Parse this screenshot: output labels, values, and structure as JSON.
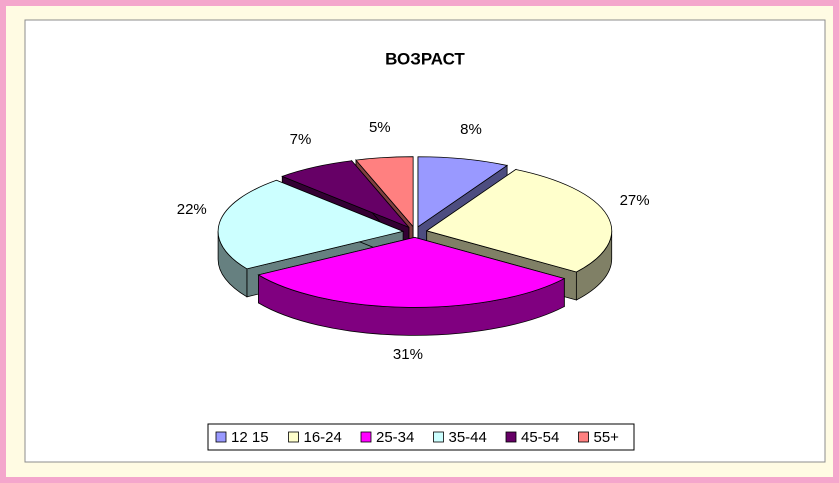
{
  "chart_data": {
    "type": "pie3d",
    "title": "ВОЗРАСТ",
    "categories": [
      "12 15",
      "16-24",
      "25-34",
      "35-44",
      "45-54",
      "55+"
    ],
    "values": [
      8,
      27,
      31,
      22,
      7,
      5
    ],
    "value_labels": [
      "8%",
      "27%",
      "31%",
      "22%",
      "7%",
      "5%"
    ],
    "colors": [
      "#9999ff",
      "#ffffcc",
      "#ff00ff",
      "#ccffff",
      "#660066",
      "#ff8080"
    ],
    "legend": "bottom"
  }
}
